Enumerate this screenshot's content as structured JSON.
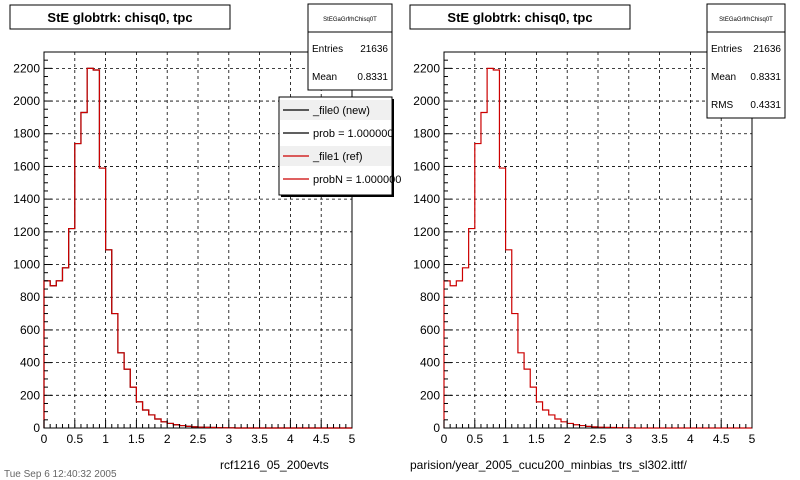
{
  "chart_data": [
    {
      "type": "bar",
      "title": "StE globtrk: chisq0, tpc",
      "xlabel": "",
      "ylabel": "",
      "xlim": [
        0,
        5
      ],
      "ylim": [
        0,
        2300
      ],
      "x_ticks": [
        "0",
        "0.5",
        "1",
        "1.5",
        "2",
        "2.5",
        "3",
        "3.5",
        "4",
        "4.5",
        "5"
      ],
      "y_ticks": [
        "0",
        "200",
        "400",
        "600",
        "800",
        "1000",
        "1200",
        "1400",
        "1600",
        "1800",
        "2000",
        "2200"
      ],
      "grid": true,
      "bin_width": 0.1,
      "series": [
        {
          "name": "_file0 (new)",
          "color": "#000000",
          "values": [
            900,
            870,
            900,
            980,
            1220,
            1740,
            1930,
            2200,
            2190,
            1590,
            1090,
            700,
            460,
            360,
            250,
            160,
            110,
            80,
            55,
            38,
            28,
            20,
            15,
            10,
            7,
            5,
            4,
            3,
            2,
            1,
            1,
            0,
            0,
            0,
            0,
            0,
            0,
            0,
            0,
            0,
            0,
            0,
            0,
            0,
            0,
            0,
            0,
            0,
            0,
            0
          ]
        },
        {
          "name": "_file1 (ref)",
          "color": "#cc0000",
          "values": [
            900,
            870,
            900,
            980,
            1220,
            1740,
            1930,
            2200,
            2190,
            1590,
            1090,
            700,
            460,
            360,
            250,
            160,
            110,
            80,
            55,
            38,
            28,
            20,
            15,
            10,
            7,
            5,
            4,
            3,
            2,
            1,
            1,
            0,
            0,
            0,
            0,
            0,
            0,
            0,
            0,
            0,
            0,
            0,
            0,
            0,
            0,
            0,
            0,
            0,
            0,
            0
          ]
        }
      ],
      "stats": {
        "header": "StEGaGrfrhChisq0T",
        "entries_label": "Entries",
        "entries": "21636",
        "mean_label": "Mean",
        "mean": "0.8331"
      },
      "legend": [
        {
          "label": "_file0 (new)",
          "color": "#000000"
        },
        {
          "label": "prob = 1.000000",
          "color": "#000000"
        },
        {
          "label": "_file1 (ref)",
          "color": "#cc0000"
        },
        {
          "label": "probN = 1.000000",
          "color": "#cc0000"
        }
      ],
      "bottom_label": "rcf1216_05_200evts"
    },
    {
      "type": "bar",
      "title": "StE globtrk: chisq0, tpc",
      "xlabel": "",
      "ylabel": "",
      "xlim": [
        0,
        5
      ],
      "ylim": [
        0,
        2300
      ],
      "x_ticks": [
        "0",
        "0.5",
        "1",
        "1.5",
        "2",
        "2.5",
        "3",
        "3.5",
        "4",
        "4.5",
        "5"
      ],
      "y_ticks": [
        "0",
        "200",
        "400",
        "600",
        "800",
        "1000",
        "1200",
        "1400",
        "1600",
        "1800",
        "2000",
        "2200"
      ],
      "grid": true,
      "bin_width": 0.1,
      "series": [
        {
          "name": "",
          "color": "#cc0000",
          "values": [
            900,
            870,
            900,
            980,
            1220,
            1740,
            1930,
            2200,
            2190,
            1590,
            1090,
            700,
            460,
            360,
            250,
            160,
            110,
            80,
            55,
            38,
            28,
            20,
            15,
            10,
            7,
            5,
            4,
            3,
            2,
            1,
            1,
            0,
            0,
            0,
            0,
            0,
            0,
            0,
            0,
            0,
            0,
            0,
            0,
            0,
            0,
            0,
            0,
            0,
            0,
            0
          ]
        }
      ],
      "stats": {
        "header": "StEGaGrfrhChisq0T",
        "entries_label": "Entries",
        "entries": "21636",
        "mean_label": "Mean",
        "mean": "0.8331",
        "rms_label": "RMS",
        "rms": "0.4331"
      },
      "bottom_label": "parision/year_2005_cucu200_minbias_trs_sl302.ittf/"
    }
  ],
  "footer_text": "Tue Sep 6 12:40:32 2005"
}
